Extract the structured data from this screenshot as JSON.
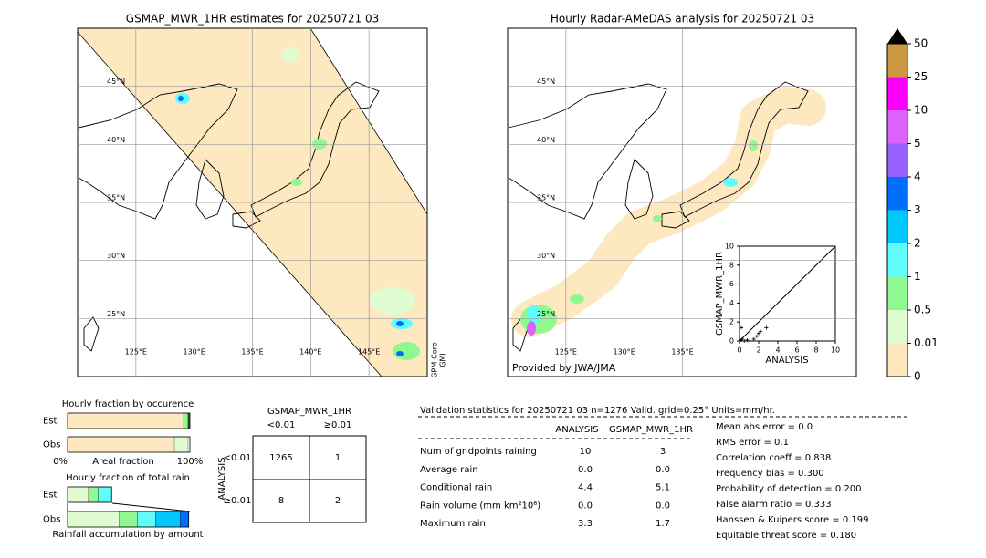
{
  "map_left": {
    "title": "GSMAP_MWR_1HR estimates for 20250721 03",
    "xlim": [
      120,
      150
    ],
    "ylim": [
      20,
      50
    ],
    "xticks": [
      {
        "value": 125,
        "label": "125°E"
      },
      {
        "value": 130,
        "label": "130°E"
      },
      {
        "value": 135,
        "label": "135°E"
      },
      {
        "value": 140,
        "label": "140°E"
      },
      {
        "value": 145,
        "label": "145°E"
      }
    ],
    "yticks": [
      {
        "value": 45,
        "label": "45°N"
      },
      {
        "value": 40,
        "label": "40°N"
      },
      {
        "value": 35,
        "label": "35°N"
      },
      {
        "value": 30,
        "label": "30°N"
      },
      {
        "value": 25,
        "label": "25°N"
      }
    ],
    "side_label": [
      "GPM-Core",
      "GMI"
    ]
  },
  "map_right": {
    "title": "Hourly Radar-AMeDAS analysis for 20250721 03",
    "xlim": [
      120,
      150
    ],
    "ylim": [
      20,
      50
    ],
    "xticks": [
      {
        "value": 125,
        "label": "125°E"
      },
      {
        "value": 130,
        "label": "130°E"
      },
      {
        "value": 135,
        "label": "135°E"
      }
    ],
    "yticks": [
      {
        "value": 45,
        "label": "45°N"
      },
      {
        "value": 40,
        "label": "40°N"
      },
      {
        "value": 35,
        "label": "35°N"
      },
      {
        "value": 30,
        "label": "30°N"
      },
      {
        "value": 25,
        "label": "25°N"
      }
    ],
    "credit": "Provided by JWA/JMA"
  },
  "scatter": {
    "type": "scatter",
    "xlabel": "ANALYSIS",
    "ylabel": "GSMAP_MWR_1HR",
    "xlim": [
      0,
      10
    ],
    "ylim": [
      0,
      10
    ],
    "xticks": [
      0,
      2,
      4,
      6,
      8,
      10
    ],
    "yticks": [
      0,
      2,
      4,
      6,
      8,
      10
    ],
    "x": [
      0.1,
      0.3,
      0.5,
      0.8,
      1.5,
      1.8,
      2.0,
      2.2,
      2.8,
      0.2
    ],
    "y": [
      0.1,
      0.2,
      0.0,
      0.1,
      0.2,
      0.5,
      0.8,
      1.0,
      1.4,
      1.4
    ]
  },
  "colorbar": {
    "ticks": [
      0,
      0.01,
      0.5,
      1,
      2,
      3,
      4,
      5,
      10,
      25,
      50
    ],
    "colors": [
      "#fde8c0",
      "#e0fcd0",
      "#90f890",
      "#60fcfc",
      "#00c8fc",
      "#0070fc",
      "#9860fc",
      "#dc64fc",
      "#fc00fc",
      "#cc9840"
    ]
  },
  "fraction_occurrence": {
    "title": "Hourly fraction by occurence",
    "rows": [
      "Est",
      "Obs"
    ],
    "values": [
      [
        94.8,
        3.7,
        1.0
      ],
      [
        87.3,
        11.2
      ]
    ],
    "colors": [
      [
        "#fde8c0",
        "#90f890",
        "#205020"
      ],
      [
        "#fde8c0",
        "#e0fcd0"
      ]
    ],
    "left_label": "0%",
    "xlabel": "Areal fraction",
    "right_label": "100%"
  },
  "fraction_rain": {
    "title": "Hourly fraction of total rain",
    "rows": [
      "Est",
      "Obs"
    ],
    "values": [
      [
        17,
        8,
        11
      ],
      [
        42,
        15,
        15,
        20,
        7
      ]
    ],
    "colors": [
      [
        "#e0fcd0",
        "#90f890",
        "#60fcfc"
      ],
      [
        "#e0fcd0",
        "#90f890",
        "#60fcfc",
        "#00c8fc",
        "#0070fc"
      ]
    ],
    "xlabel": "Rainfall accumulation by amount"
  },
  "contingency": {
    "title": "GSMAP_MWR_1HR",
    "col_headers": [
      "<0.01",
      "≥0.01"
    ],
    "row_axis": "ANALYSIS",
    "row_headers": [
      "<0.01",
      "≥0.01"
    ],
    "cells": [
      [
        "1265",
        "1"
      ],
      [
        "8",
        "2"
      ]
    ]
  },
  "validation": {
    "title": "Validation statistics for 20250721 03  n=1276 Valid. grid=0.25° Units=mm/hr.",
    "columns": [
      "ANALYSIS",
      "GSMAP_MWR_1HR"
    ],
    "rows": [
      {
        "label": "Num of gridpoints raining",
        "values": [
          "10",
          "3"
        ]
      },
      {
        "label": "Average rain",
        "values": [
          "0.0",
          "0.0"
        ]
      },
      {
        "label": "Conditional rain",
        "values": [
          "4.4",
          "5.1"
        ]
      },
      {
        "label": "Rain volume (mm km²10⁶)",
        "values": [
          "0.0",
          "0.0"
        ]
      },
      {
        "label": "Maximum rain",
        "values": [
          "3.3",
          "1.7"
        ]
      }
    ]
  },
  "scores": [
    "Mean abs error =    0.0",
    "RMS error =    0.1",
    "Correlation coeff =  0.838",
    "Frequency bias =  0.300",
    "Probability of detection =  0.200",
    "False alarm ratio =  0.333",
    "Hanssen & Kuipers score =  0.199",
    "Equitable threat score =  0.180"
  ]
}
